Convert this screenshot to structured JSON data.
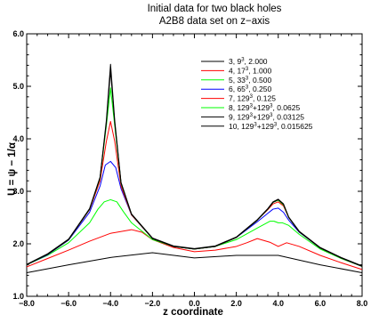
{
  "chart_data": {
    "type": "line",
    "title": "Initial data for two black holes",
    "subtitle": "A2B8 data set on z−axis",
    "xlabel": "z coordinate",
    "ylabel": "U = ψ − 1/α",
    "xlim": [
      -8.0,
      8.0
    ],
    "ylim": [
      1.0,
      6.0
    ],
    "xticks": [
      -8.0,
      -6.0,
      -4.0,
      -2.0,
      0.0,
      2.0,
      4.0,
      6.0,
      8.0
    ],
    "xtick_labels": [
      "−8.0",
      "−6.0",
      "−4.0",
      "−2.0",
      "0.0",
      "2.0",
      "4.0",
      "6.0",
      "8.0"
    ],
    "yticks": [
      1.0,
      2.0,
      3.0,
      4.0,
      5.0,
      6.0
    ],
    "ytick_labels": [
      "1.0",
      "2.0",
      "3.0",
      "4.0",
      "5.0",
      "6.0"
    ],
    "legend_position": "top-right",
    "grid": false,
    "series": [
      {
        "name": "3, 9³, 2.000",
        "legend_parts": [
          "3, 9",
          "3",
          ", 2.000"
        ],
        "color": "#000000",
        "x": [
          -8,
          -6,
          -4,
          -2,
          0,
          2,
          4,
          6,
          8
        ],
        "y": [
          1.45,
          1.6,
          1.74,
          1.83,
          1.73,
          1.78,
          1.78,
          1.6,
          1.45
        ]
      },
      {
        "name": "4, 17³, 1.000",
        "legend_parts": [
          "4, 17",
          "3",
          ", 1.000"
        ],
        "color": "#ff0000",
        "x": [
          -8,
          -7,
          -6,
          -5,
          -4,
          -3,
          -2.5,
          -2,
          -1,
          0,
          1,
          2,
          2.5,
          3,
          3.6,
          4,
          4.4,
          5,
          6,
          7,
          8
        ],
        "y": [
          1.56,
          1.72,
          1.88,
          2.05,
          2.2,
          2.27,
          2.22,
          2.08,
          1.93,
          1.85,
          1.88,
          1.95,
          2.02,
          2.1,
          2.03,
          1.95,
          2.02,
          1.95,
          1.78,
          1.64,
          1.51
        ]
      },
      {
        "name": "5, 33³, 0.500",
        "legend_parts": [
          "5, 33",
          "3",
          ", 0.500"
        ],
        "color": "#00ff00",
        "x": [
          -8,
          -7,
          -6,
          -5,
          -4.6,
          -4.3,
          -4,
          -3.7,
          -3.4,
          -3,
          -2,
          -1,
          0,
          1,
          2,
          3,
          3.6,
          3.8,
          4,
          4.2,
          4.5,
          5,
          6,
          7,
          8
        ],
        "y": [
          1.6,
          1.78,
          2.02,
          2.4,
          2.66,
          2.8,
          2.84,
          2.8,
          2.62,
          2.4,
          2.08,
          1.95,
          1.9,
          1.95,
          2.08,
          2.3,
          2.43,
          2.43,
          2.4,
          2.4,
          2.35,
          2.18,
          1.9,
          1.72,
          1.57
        ]
      },
      {
        "name": "6, 65³, 0.250",
        "legend_parts": [
          "6, 65",
          "3",
          ", 0.250"
        ],
        "color": "#0000ff",
        "x": [
          -8,
          -7,
          -6,
          -5,
          -4.5,
          -4.25,
          -4,
          -3.75,
          -3.5,
          -3,
          -2,
          -1,
          0,
          1,
          2,
          3,
          3.5,
          3.75,
          4,
          4.25,
          4.5,
          5,
          6,
          7,
          8
        ],
        "y": [
          1.6,
          1.79,
          2.07,
          2.6,
          3.1,
          3.5,
          3.57,
          3.45,
          3.05,
          2.55,
          2.1,
          1.95,
          1.9,
          1.95,
          2.12,
          2.42,
          2.58,
          2.66,
          2.68,
          2.6,
          2.45,
          2.22,
          1.92,
          1.73,
          1.57
        ]
      },
      {
        "name": "7, 129³, 0.125",
        "legend_parts": [
          "7, 129",
          "3",
          ", 0.125"
        ],
        "color": "#ff0000",
        "x": [
          -8,
          -7,
          -6,
          -5,
          -4.5,
          -4.2,
          -4,
          -3.8,
          -3.5,
          -3,
          -2,
          -1,
          0,
          1,
          2,
          3,
          3.5,
          3.75,
          4,
          4.25,
          4.5,
          5,
          6,
          7,
          8
        ],
        "y": [
          1.6,
          1.8,
          2.08,
          2.65,
          3.2,
          3.95,
          4.33,
          3.95,
          3.1,
          2.55,
          2.1,
          1.95,
          1.9,
          1.95,
          2.12,
          2.45,
          2.65,
          2.76,
          2.8,
          2.72,
          2.5,
          2.23,
          1.92,
          1.73,
          1.57
        ]
      },
      {
        "name": "8, 129³+129³, 0.0625",
        "legend_parts": [
          "8, 129",
          "3",
          "+129",
          "3",
          ", 0.0625"
        ],
        "color": "#00ff00",
        "x": [
          -8,
          -7,
          -6,
          -5,
          -4.5,
          -4.2,
          -4,
          -3.8,
          -3.5,
          -3,
          -2,
          -1,
          0,
          1,
          2,
          3,
          3.5,
          3.75,
          4,
          4.25,
          4.5,
          5,
          6,
          7,
          8
        ],
        "y": [
          1.6,
          1.8,
          2.08,
          2.66,
          3.25,
          4.25,
          4.97,
          4.25,
          3.15,
          2.56,
          2.1,
          1.95,
          1.9,
          1.95,
          2.12,
          2.45,
          2.66,
          2.79,
          2.83,
          2.74,
          2.5,
          2.23,
          1.92,
          1.73,
          1.57
        ]
      },
      {
        "name": "9, 129³+129³, 0.03125",
        "legend_parts": [
          "9, 129",
          "3",
          "+129",
          "3",
          ", 0.03125"
        ],
        "color": "#000000",
        "x": [
          -8,
          -7,
          -6,
          -5,
          -4.5,
          -4.2,
          -4,
          -3.8,
          -3.5,
          -3,
          -2,
          -1,
          0,
          1,
          2,
          3,
          3.5,
          3.75,
          4,
          4.25,
          4.5,
          5,
          6,
          7,
          8
        ],
        "y": [
          1.6,
          1.8,
          2.08,
          2.66,
          3.26,
          4.3,
          5.3,
          4.3,
          3.16,
          2.56,
          2.1,
          1.95,
          1.9,
          1.95,
          2.12,
          2.45,
          2.66,
          2.79,
          2.84,
          2.75,
          2.5,
          2.23,
          1.92,
          1.73,
          1.57
        ]
      },
      {
        "name": "10, 129³+129³, 0.015625",
        "legend_parts": [
          "10, 129",
          "3",
          "+129",
          "3",
          ", 0.015625"
        ],
        "color": "#000000",
        "x": [
          -8,
          -7,
          -6,
          -5,
          -4.5,
          -4.2,
          -4,
          -3.8,
          -3.5,
          -3,
          -2,
          -1,
          0,
          1,
          2,
          3,
          3.5,
          3.75,
          4,
          4.25,
          4.5,
          5,
          6,
          7,
          8
        ],
        "y": [
          1.61,
          1.81,
          2.09,
          2.67,
          3.27,
          4.35,
          5.42,
          4.35,
          3.17,
          2.57,
          2.11,
          1.96,
          1.91,
          1.96,
          2.13,
          2.46,
          2.67,
          2.8,
          2.85,
          2.76,
          2.51,
          2.24,
          1.93,
          1.74,
          1.58
        ]
      }
    ]
  }
}
